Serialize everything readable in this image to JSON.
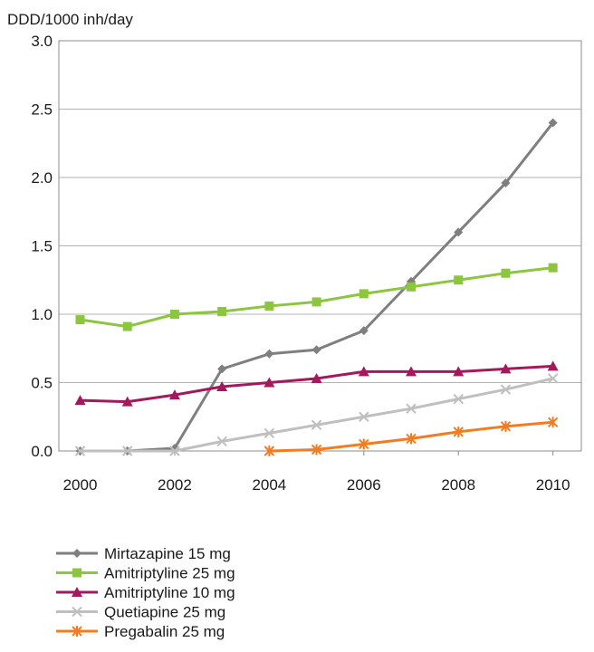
{
  "chart_data": {
    "type": "line",
    "title": "",
    "ylabel": "DDD/1000 inh/day",
    "xlabel": "",
    "ylim": [
      0,
      3.0
    ],
    "yticks": [
      "0.0",
      "0.5",
      "1.0",
      "1.5",
      "2.0",
      "2.5",
      "3.0"
    ],
    "xticks": [
      "2000",
      "2002",
      "2004",
      "2006",
      "2008",
      "2010"
    ],
    "x": [
      2000,
      2001,
      2002,
      2003,
      2004,
      2005,
      2006,
      2007,
      2008,
      2009,
      2010
    ],
    "grid": "horizontal",
    "legend": "bottom-left",
    "series": [
      {
        "name": "Mirtazapine  15 mg",
        "color": "#7f7f7f",
        "marker": "diamond",
        "values": [
          0.0,
          0.0,
          0.02,
          0.6,
          0.71,
          0.74,
          0.88,
          1.24,
          1.6,
          1.96,
          2.4
        ]
      },
      {
        "name": "Amitriptyline  25 mg",
        "color": "#8cc63f",
        "marker": "square",
        "values": [
          0.96,
          0.91,
          1.0,
          1.02,
          1.06,
          1.09,
          1.15,
          1.2,
          1.25,
          1.3,
          1.34
        ]
      },
      {
        "name": "Amitriptyline  10 mg",
        "color": "#a3195b",
        "marker": "triangle",
        "values": [
          0.37,
          0.36,
          0.41,
          0.47,
          0.5,
          0.53,
          0.58,
          0.58,
          0.58,
          0.6,
          0.62
        ]
      },
      {
        "name": "Quetiapine  25 mg",
        "color": "#bfbfbf",
        "marker": "x",
        "values": [
          0.0,
          0.0,
          0.0,
          0.07,
          0.13,
          0.19,
          0.25,
          0.31,
          0.38,
          0.45,
          0.53
        ]
      },
      {
        "name": "Pregabalin  25 mg",
        "color": "#f47c20",
        "marker": "star",
        "values": [
          null,
          null,
          null,
          null,
          0.0,
          0.01,
          0.05,
          0.09,
          0.14,
          0.18,
          0.21
        ]
      }
    ]
  }
}
